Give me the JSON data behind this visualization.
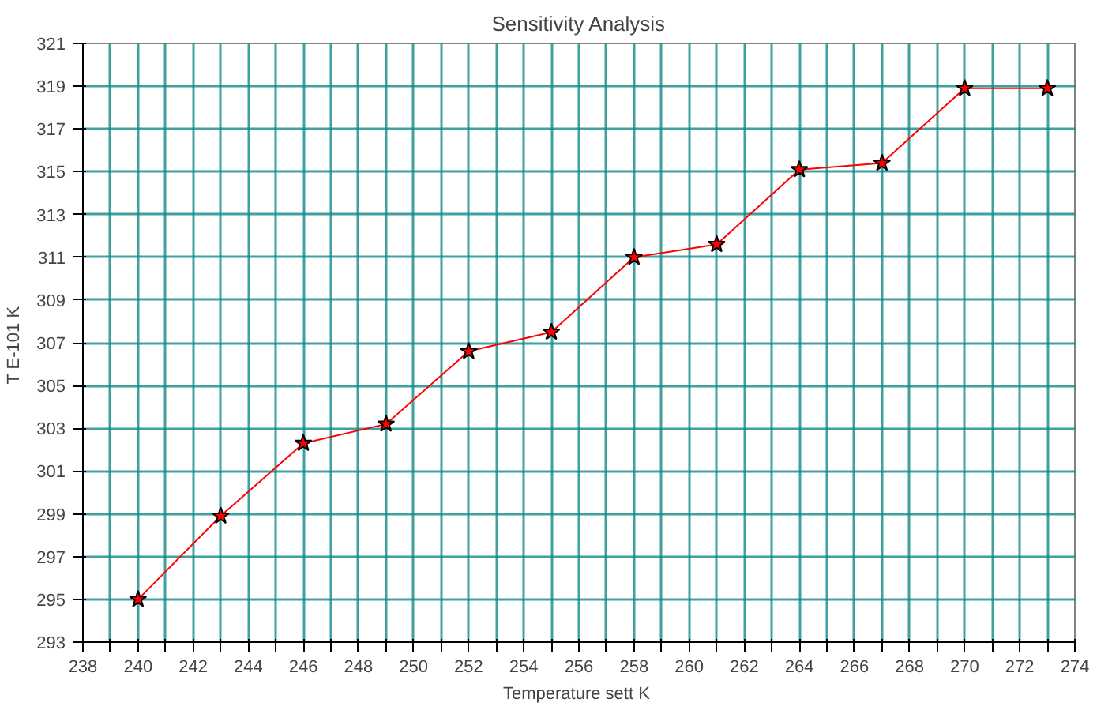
{
  "chart_data": {
    "type": "line",
    "title": "Sensitivity Analysis",
    "xlabel": "Temperature sett  K",
    "ylabel": "T E-101  K",
    "x": [
      240,
      243,
      246,
      249,
      252,
      255,
      258,
      261,
      264,
      267,
      270,
      273
    ],
    "series": [
      {
        "color": "#ff0000",
        "values": [
          295.0,
          298.9,
          302.3,
          303.2,
          306.6,
          307.5,
          311.0,
          311.6,
          315.1,
          315.4,
          318.9,
          318.9
        ]
      }
    ],
    "xlim": [
      238,
      274
    ],
    "ylim": [
      293,
      321
    ],
    "xticks": [
      238,
      {
        "value": 239,
        "label": null
      },
      240,
      {
        "value": 241,
        "label": null
      },
      242,
      {
        "value": 243,
        "label": null
      },
      244,
      {
        "value": 245,
        "label": null
      },
      246,
      {
        "value": 247,
        "label": null
      },
      248,
      {
        "value": 249,
        "label": null
      },
      250,
      {
        "value": 251,
        "label": null
      },
      252,
      {
        "value": 253,
        "label": null
      },
      254,
      {
        "value": 255,
        "label": null
      },
      256,
      {
        "value": 257,
        "label": null
      },
      258,
      {
        "value": 259,
        "label": null
      },
      260,
      {
        "value": 261,
        "label": null
      },
      262,
      {
        "value": 263,
        "label": null
      },
      264,
      {
        "value": 265,
        "label": null
      },
      266,
      {
        "value": 267,
        "label": null
      },
      268,
      {
        "value": 269,
        "label": null
      },
      270,
      {
        "value": 271,
        "label": null
      },
      272,
      {
        "value": 273,
        "label": null
      },
      274
    ],
    "yticks": [
      293,
      295,
      297,
      299,
      301,
      303,
      305,
      307,
      309,
      311,
      313,
      315,
      317,
      319,
      321
    ],
    "grid": true,
    "marker": "star",
    "line_style": "solid"
  }
}
